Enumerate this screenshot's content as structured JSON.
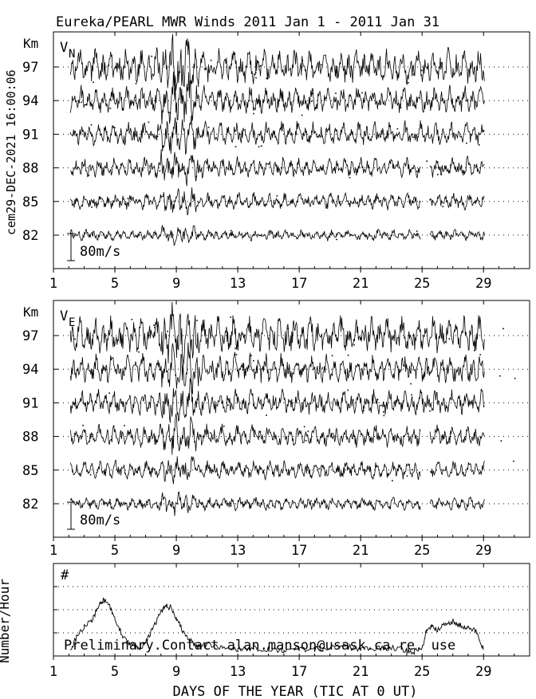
{
  "title": "Eureka/PEARL MWR Winds 2011 Jan  1 - 2011 Jan 31",
  "side_label": "cem29-DEC-2021 16:00:06",
  "footer_xlabel": "DAYS OF THE YEAR (TIC AT 0 UT)",
  "colors": {
    "ink": "#000000",
    "background": "#ffffff"
  },
  "chart_data": [
    {
      "type": "line",
      "panel": "north",
      "component_label": "V",
      "component_subscript": "N",
      "y_unit": "Km",
      "heights_km": [
        82,
        85,
        88,
        91,
        94,
        97
      ],
      "scale_bar_label": "80m/s",
      "x_ticks": [
        1,
        5,
        9,
        13,
        17,
        21,
        25,
        29
      ],
      "xlim": [
        1,
        32
      ],
      "data_start_day": 2.1,
      "data_end_day": 29.1,
      "grid": "dotted horizontal at each height",
      "series": [
        {
          "height": 82,
          "amplitude_ms": 12
        },
        {
          "height": 85,
          "amplitude_ms": 18
        },
        {
          "height": 88,
          "amplitude_ms": 22
        },
        {
          "height": 91,
          "amplitude_ms": 26
        },
        {
          "height": 94,
          "amplitude_ms": 30
        },
        {
          "height": 97,
          "amplitude_ms": 38
        }
      ]
    },
    {
      "type": "line",
      "panel": "east",
      "component_label": "V",
      "component_subscript": "E",
      "y_unit": "Km",
      "heights_km": [
        82,
        85,
        88,
        91,
        94,
        97
      ],
      "scale_bar_label": "80m/s",
      "x_ticks": [
        1,
        5,
        9,
        13,
        17,
        21,
        25,
        29
      ],
      "xlim": [
        1,
        32
      ],
      "data_start_day": 2.1,
      "data_end_day": 29.1,
      "grid": "dotted horizontal at each height",
      "series": [
        {
          "height": 82,
          "amplitude_ms": 14
        },
        {
          "height": 85,
          "amplitude_ms": 20
        },
        {
          "height": 88,
          "amplitude_ms": 24
        },
        {
          "height": 91,
          "amplitude_ms": 28
        },
        {
          "height": 94,
          "amplitude_ms": 32
        },
        {
          "height": 97,
          "amplitude_ms": 40
        }
      ]
    },
    {
      "type": "line",
      "panel": "count",
      "ylabel": "Number/Hour",
      "corner_label": "#",
      "note": "Preliminary.Contact alan.manson@usask.ca re. use",
      "x_ticks": [
        1,
        5,
        9,
        13,
        17,
        21,
        25,
        29
      ],
      "xlim": [
        1,
        32
      ],
      "grid_levels": 3,
      "series": [
        {
          "days": [
            2.1,
            2.5,
            3.0,
            3.5,
            4.0,
            4.3,
            4.7,
            5.0,
            5.5,
            6.0,
            6.5,
            7.0,
            7.5,
            8.0,
            8.3,
            8.7,
            9.0,
            9.5,
            10.0,
            10.5,
            11.0,
            12.0,
            13.0,
            14.0,
            15.0,
            16.0,
            17.0,
            18.0,
            19.0,
            20.0,
            21.0,
            22.0,
            23.0,
            24.0,
            24.5,
            25.0,
            25.3,
            25.7,
            26.0,
            26.5,
            27.0,
            27.5,
            28.0,
            28.5,
            29.0
          ],
          "values": [
            0.25,
            0.8,
            1.3,
            1.5,
            2.3,
            2.4,
            2.1,
            1.6,
            0.9,
            0.5,
            0.3,
            0.6,
            1.2,
            1.9,
            2.2,
            2.1,
            1.6,
            1.0,
            0.6,
            0.4,
            0.5,
            0.35,
            0.3,
            0.35,
            0.3,
            0.25,
            0.3,
            0.3,
            0.35,
            0.4,
            0.3,
            0.3,
            0.35,
            0.25,
            0.2,
            0.3,
            1.2,
            1.3,
            1.1,
            1.4,
            1.5,
            1.3,
            1.2,
            1.1,
            0.3
          ]
        }
      ]
    }
  ]
}
